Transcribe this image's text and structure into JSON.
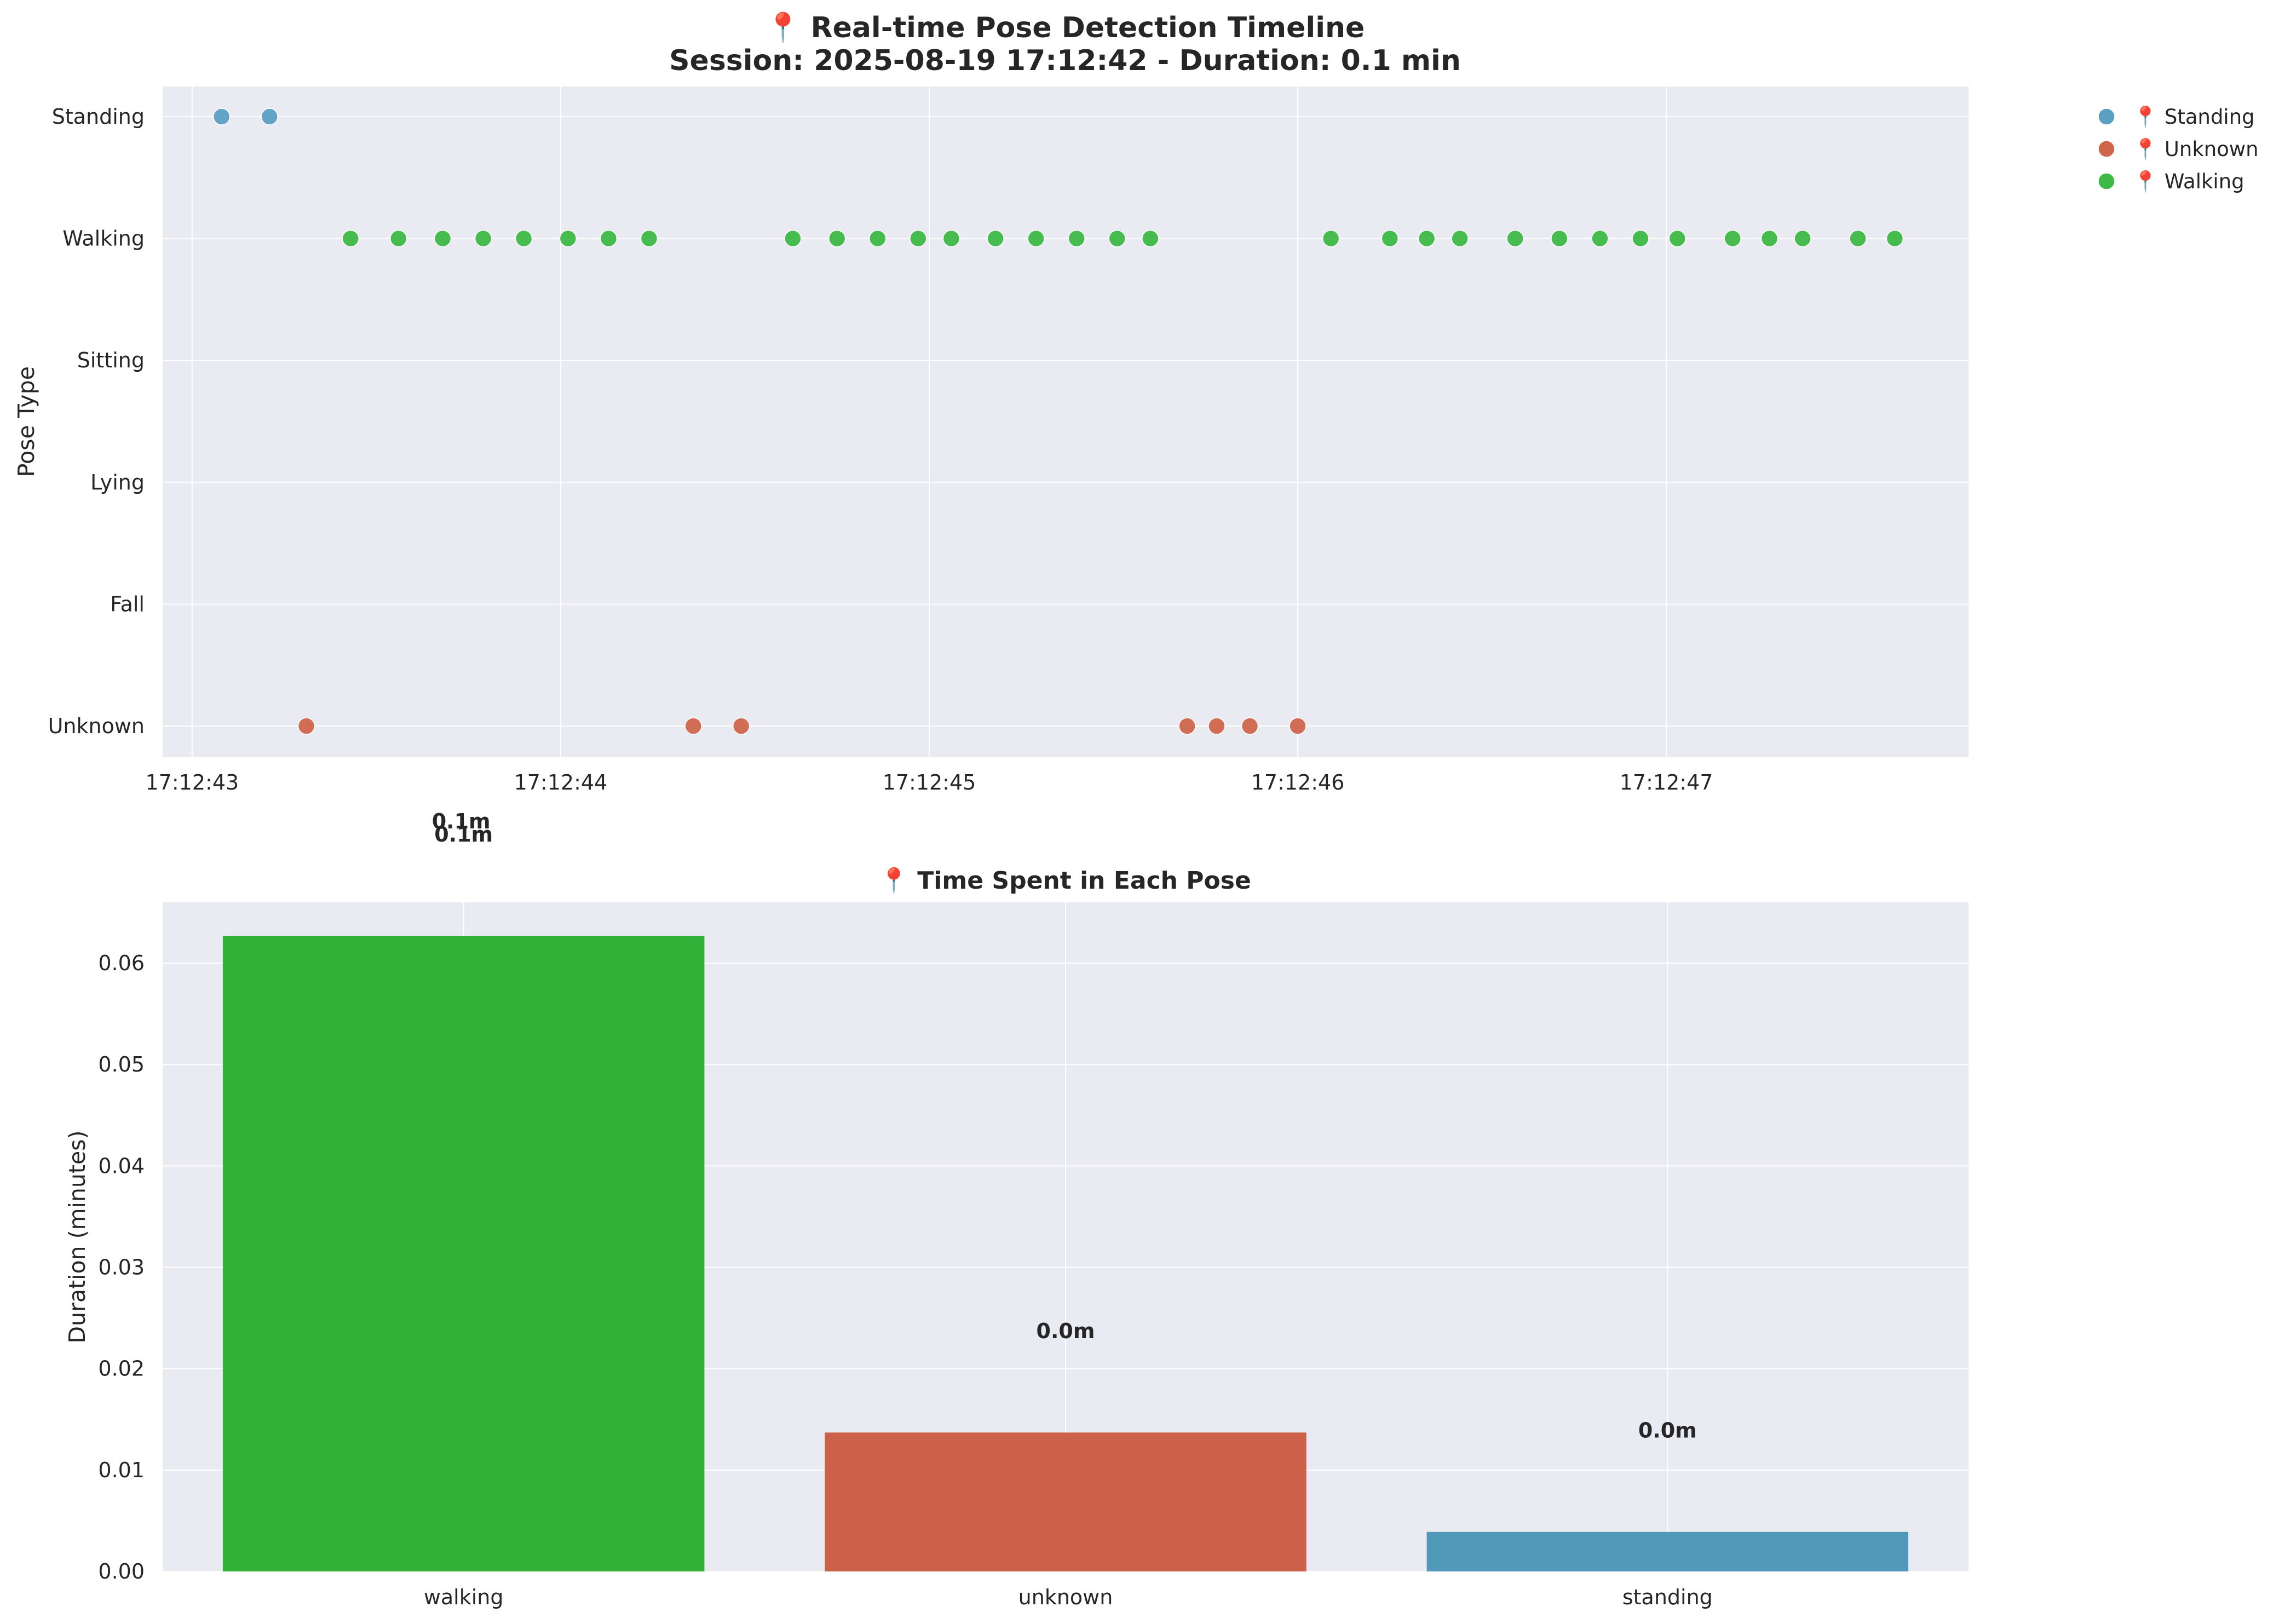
{
  "figure": {
    "background": "#ffffff",
    "plot_background": "#eaeaf2",
    "grid_color": "#ffffff"
  },
  "chart_data": [
    {
      "type": "scatter",
      "title": "📍 Real-time Pose Detection Timeline",
      "subtitle": "Session: 2025-08-19 17:12:42 - Duration: 0.1 min",
      "xlabel": "",
      "ylabel": "Pose Type",
      "y_categories": [
        "Unknown",
        "Fall",
        "Lying",
        "Sitting",
        "Walking",
        "Standing"
      ],
      "x_ticks": [
        "17:12:43",
        "17:12:44",
        "17:12:45",
        "17:12:46",
        "17:12:47"
      ],
      "xlim": [
        42.92,
        47.82
      ],
      "grid": true,
      "legend_position": "upper right, outside plot",
      "annotations": [
        {
          "text": "0.1m",
          "x": 43.73,
          "y": "below Unknown"
        }
      ],
      "series": [
        {
          "name": "📍 Standing",
          "color": "#5ba0c2",
          "pose": "Standing",
          "x": [
            43.08,
            43.21
          ]
        },
        {
          "name": "📍 Unknown",
          "color": "#d0654c",
          "pose": "Unknown",
          "x": [
            43.31,
            44.36,
            44.49,
            45.7,
            45.78,
            45.87,
            46.0
          ]
        },
        {
          "name": "📍 Walking",
          "color": "#3db946",
          "pose": "Walking",
          "x": [
            43.43,
            43.56,
            43.68,
            43.79,
            43.9,
            44.02,
            44.13,
            44.24,
            44.63,
            44.75,
            44.86,
            44.97,
            45.06,
            45.18,
            45.29,
            45.4,
            45.51,
            45.6,
            46.09,
            46.25,
            46.35,
            46.44,
            46.59,
            46.71,
            46.82,
            46.93,
            47.03,
            47.18,
            47.28,
            47.37,
            47.52,
            47.62
          ]
        }
      ]
    },
    {
      "type": "bar",
      "title": "📍 Time Spent in Each Pose",
      "xlabel": "",
      "ylabel": "Duration (minutes)",
      "categories": [
        "walking",
        "unknown",
        "standing"
      ],
      "values": [
        0.0627,
        0.0137,
        0.0039
      ],
      "colors": [
        "#31b135",
        "#cd604a",
        "#5099b9"
      ],
      "value_labels": [
        "0.1m",
        "0.0m",
        "0.0m"
      ],
      "ylim": [
        0,
        0.066
      ],
      "y_ticks": [
        "0.00",
        "0.01",
        "0.02",
        "0.03",
        "0.04",
        "0.05",
        "0.06"
      ],
      "grid": true
    }
  ]
}
